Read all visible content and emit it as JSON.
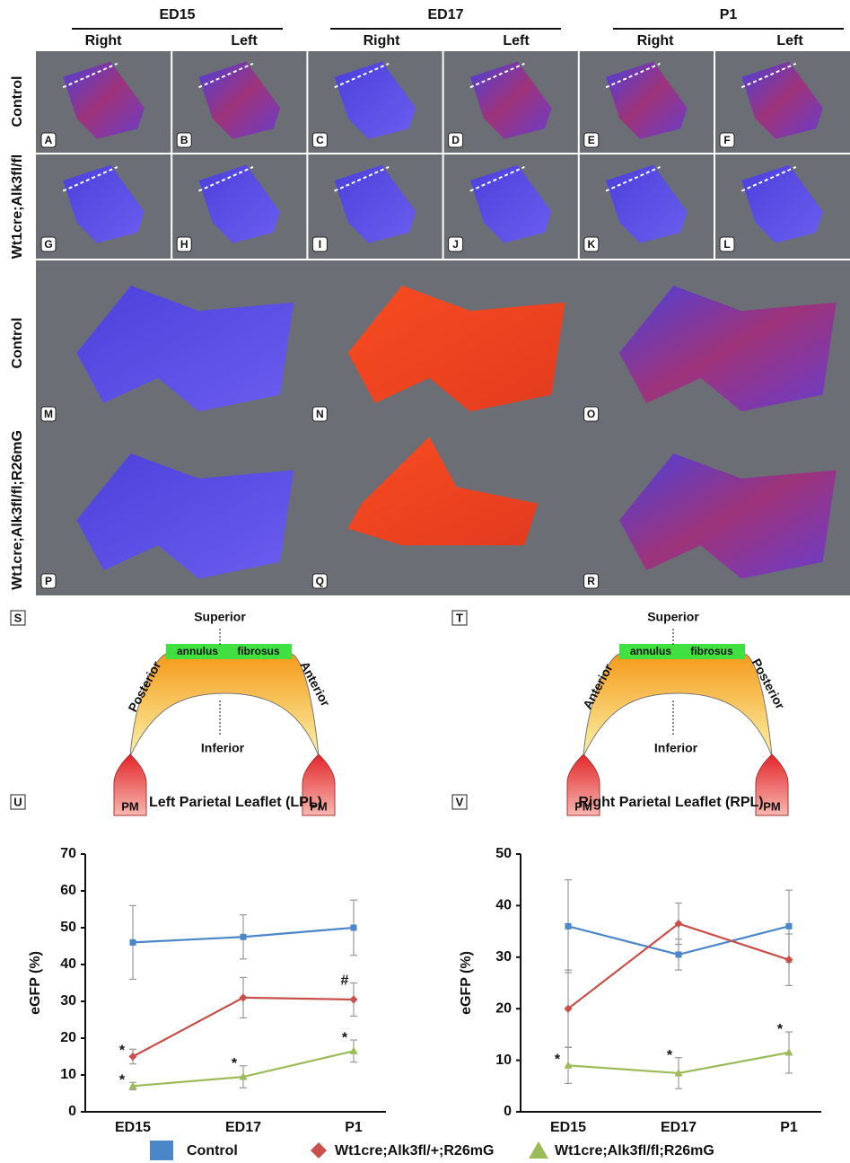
{
  "header": [
    {
      "label": "ED15",
      "sides": [
        "Right",
        "Left"
      ]
    },
    {
      "label": "ED17",
      "sides": [
        "Right",
        "Left"
      ]
    },
    {
      "label": "P1",
      "sides": [
        "Right",
        "Left"
      ]
    }
  ],
  "row_labels": [
    "Control",
    "Wt1cre;Alk3fl/fl",
    "Control",
    "Wt1cre;Alk3fl/fl;R26mG"
  ],
  "panel_letters": [
    "A",
    "B",
    "C",
    "D",
    "E",
    "F",
    "G",
    "H",
    "I",
    "J",
    "K",
    "L",
    "M",
    "N",
    "O",
    "P",
    "Q",
    "R"
  ],
  "diagrams": [
    {
      "letter": "S",
      "superior": "Superior",
      "inferior": "Inferior",
      "annulus": [
        "annulus",
        "fibrosus"
      ],
      "left": "Posterior",
      "right": "Anterior",
      "pm": [
        "PM",
        "PM"
      ]
    },
    {
      "letter": "T",
      "superior": "Superior",
      "inferior": "Inferior",
      "annulus": [
        "annulus",
        "fibrosus"
      ],
      "left": "Anterior",
      "right": "Posterior",
      "pm": [
        "PM",
        "PM"
      ]
    }
  ],
  "chart_data": [
    {
      "type": "line",
      "letter": "U",
      "title": "Left Parietal Leaflet (LPL)",
      "y_label": "eGFP (%)",
      "categories": [
        "ED15",
        "ED17",
        "P1"
      ],
      "ylim": [
        0,
        70
      ],
      "yticks": [
        0,
        10,
        20,
        30,
        40,
        50,
        60,
        70
      ],
      "series": [
        {
          "name": "Control",
          "color": "#4a86c8",
          "marker": "square",
          "values": [
            46,
            47.5,
            50
          ],
          "errors": [
            10,
            6,
            7.5
          ]
        },
        {
          "name": "Wt1cre;Alk3fl/+;R26mG",
          "color": "#c8504b",
          "marker": "diamond",
          "values": [
            15,
            31,
            30.5
          ],
          "errors": [
            2,
            5.5,
            4.5
          ]
        },
        {
          "name": "Wt1cre;Alk3fl/fl;R26mG",
          "color": "#9bbb59",
          "marker": "triangle",
          "values": [
            7,
            9.5,
            16.5
          ],
          "errors": [
            1,
            3,
            3
          ]
        }
      ],
      "annotations": [
        {
          "text": "*",
          "series": 1,
          "category": 0
        },
        {
          "text": "*",
          "series": 2,
          "category": 0
        },
        {
          "text": "*",
          "series": 2,
          "category": 1
        },
        {
          "text": "*",
          "series": 2,
          "category": 2
        },
        {
          "text": "#",
          "series": 1,
          "category": 2
        }
      ]
    },
    {
      "type": "line",
      "letter": "V",
      "title": "Right Parietal Leaflet (RPL)",
      "y_label": "eGFP (%)",
      "categories": [
        "ED15",
        "ED17",
        "P1"
      ],
      "ylim": [
        0,
        50
      ],
      "yticks": [
        0,
        10,
        20,
        30,
        40,
        50
      ],
      "series": [
        {
          "color": "#4a86c8",
          "marker": "square",
          "values": [
            36,
            30.5,
            36
          ],
          "errors": [
            9,
            3,
            7
          ]
        },
        {
          "color": "#c8504b",
          "marker": "diamond",
          "values": [
            20,
            36.5,
            29.5
          ],
          "errors": [
            7.5,
            4,
            5
          ]
        },
        {
          "color": "#9bbb59",
          "marker": "triangle",
          "values": [
            9,
            7.5,
            11.5
          ],
          "errors": [
            3.5,
            3,
            4
          ]
        }
      ],
      "annotations": [
        {
          "text": "*",
          "series": 2,
          "category": 0
        },
        {
          "text": "*",
          "series": 2,
          "category": 1
        },
        {
          "text": "*",
          "series": 2,
          "category": 2
        }
      ]
    }
  ]
}
